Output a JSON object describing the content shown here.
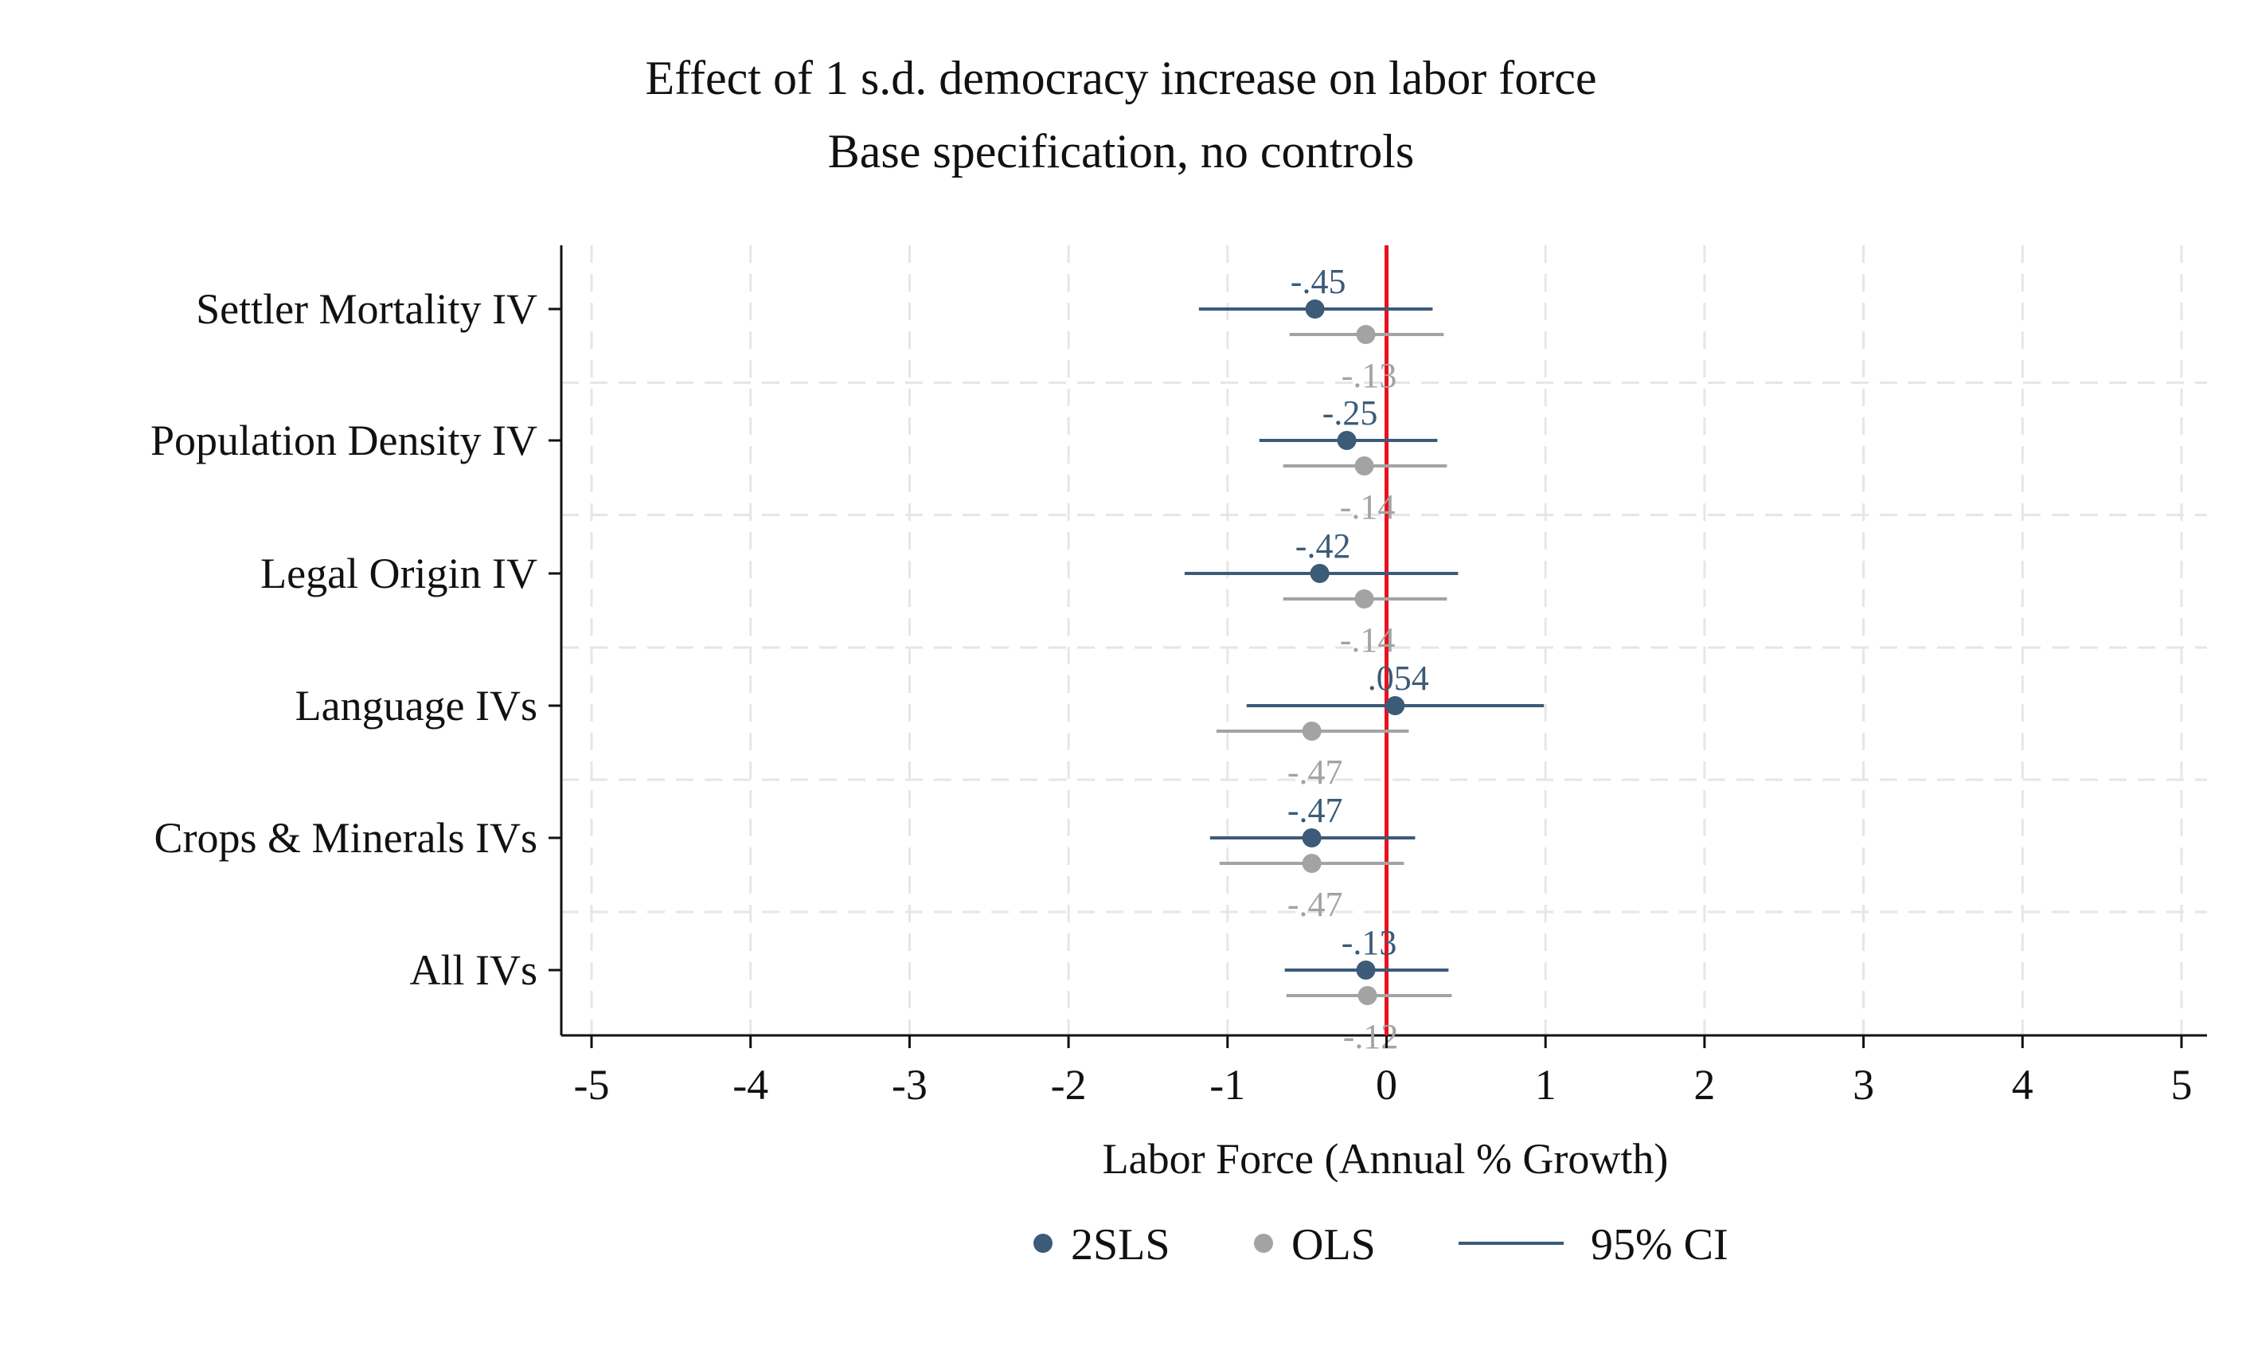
{
  "chart_data": {
    "type": "coefficient-plot",
    "title": "Effect of 1 s.d. democracy increase on labor force",
    "subtitle": "Base specification, no controls",
    "xlabel": "Labor Force (Annual % Growth)",
    "ylabel": "",
    "xlim": [
      -5,
      5
    ],
    "xticks": [
      -5,
      -4,
      -3,
      -2,
      -1,
      0,
      1,
      2,
      3,
      4,
      5
    ],
    "xtick_labels": [
      "-5",
      "-4",
      "-3",
      "-2",
      "-1",
      "0",
      "1",
      "2",
      "3",
      "4",
      "5"
    ],
    "reference_line": 0,
    "grid": true,
    "legend_position": "bottom",
    "categories": [
      "Settler Mortality IV",
      "Population Density IV",
      "Legal Origin IV",
      "Language IVs",
      "Crops & Minerals IVs",
      "All IVs"
    ],
    "series": [
      {
        "name": "2SLS",
        "color": "#3b5b78",
        "estimates": [
          -0.45,
          -0.25,
          -0.42,
          0.054,
          -0.47,
          -0.13
        ],
        "labels": [
          "-.45",
          "-.25",
          "-.42",
          ".054",
          "-.47",
          "-.13"
        ],
        "ci_low": [
          -1.18,
          -0.8,
          -1.27,
          -0.88,
          -1.11,
          -0.64
        ],
        "ci_high": [
          0.29,
          0.32,
          0.45,
          0.99,
          0.18,
          0.39
        ]
      },
      {
        "name": "OLS",
        "color": "#a3a3a3",
        "estimates": [
          -0.13,
          -0.14,
          -0.14,
          -0.47,
          -0.47,
          -0.12
        ],
        "labels": [
          "-.13",
          "-.14",
          "-.14",
          "-.47",
          "-.47",
          "-.12"
        ],
        "ci_low": [
          -0.61,
          -0.65,
          -0.65,
          -1.07,
          -1.05,
          -0.63
        ],
        "ci_high": [
          0.36,
          0.38,
          0.38,
          0.14,
          0.11,
          0.41
        ]
      }
    ],
    "legend": [
      {
        "label": "2SLS",
        "kind": "marker",
        "color": "#3b5b78"
      },
      {
        "label": "OLS",
        "kind": "marker",
        "color": "#a3a3a3"
      },
      {
        "label": "95% CI",
        "kind": "line",
        "color": "#3b5b78"
      }
    ],
    "reference_color": "#e8121b"
  }
}
